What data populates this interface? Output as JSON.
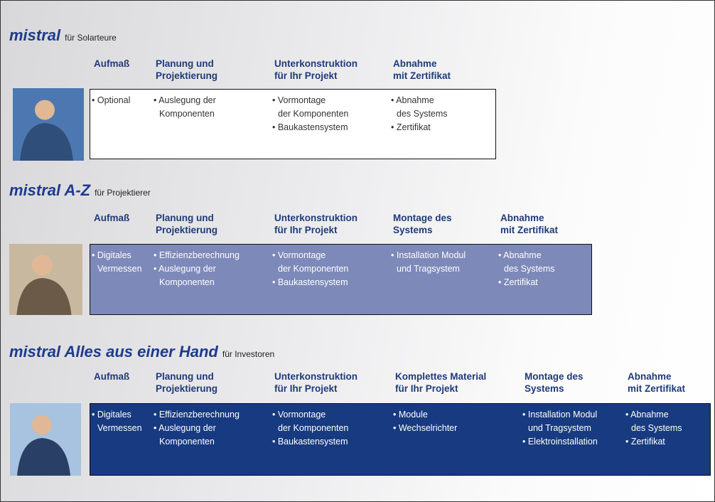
{
  "sections": [
    {
      "title": "mistral",
      "subtitle": "für Solarteure",
      "columns": [
        {
          "header": "Aufmaß",
          "items": [
            "• Optional"
          ]
        },
        {
          "header": "Planung und\nProjektierung",
          "items": [
            "• Auslegung der\nKomponenten"
          ]
        },
        {
          "header": "Unterkonstruktion\nfür Ihr Projekt",
          "items": [
            "• Vormontage\nder Komponenten",
            "• Baukastensystem"
          ]
        },
        {
          "header": "Abnahme\nmit Zertifikat",
          "items": [
            "• Abnahme\ndes Systems",
            "• Zertifikat"
          ]
        }
      ]
    },
    {
      "title": "mistral A-Z",
      "subtitle": "für Projektierer",
      "columns": [
        {
          "header": "Aufmaß",
          "items": [
            "• Digitales\nVermessen"
          ]
        },
        {
          "header": "Planung und\nProjektierung",
          "items": [
            "• Effizienzberechnung",
            "• Auslegung der\nKomponenten"
          ]
        },
        {
          "header": "Unterkonstruktion\nfür Ihr Projekt",
          "items": [
            "• Vormontage\nder Komponenten",
            "• Baukastensystem"
          ]
        },
        {
          "header": "Montage des\nSystems",
          "items": [
            "• Installation Modul\nund Tragsystem"
          ]
        },
        {
          "header": "Abnahme\nmit Zertifikat",
          "items": [
            "• Abnahme\ndes Systems",
            "• Zertifikat"
          ]
        }
      ]
    },
    {
      "title": "mistral Alles aus einer Hand",
      "subtitle": "für Investoren",
      "columns": [
        {
          "header": "Aufmaß",
          "items": [
            "• Digitales\nVermessen"
          ]
        },
        {
          "header": "Planung und\nProjektierung",
          "items": [
            "• Effizienzberechnung",
            "• Auslegung der\nKomponenten"
          ]
        },
        {
          "header": "Unterkonstruktion\nfür Ihr Projekt",
          "items": [
            "• Vormontage\nder Komponenten",
            "• Baukastensystem"
          ]
        },
        {
          "header": "Komplettes Material\nfür Ihr Projekt",
          "items": [
            "• Module",
            "• Wechselrichter"
          ]
        },
        {
          "header": "Montage des\nSystems",
          "items": [
            "• Installation Modul\nund Tragsystem",
            "• Elektroinstallation"
          ]
        },
        {
          "header": "Abnahme\nmit Zertifikat",
          "items": [
            "• Abnahme\ndes Systems",
            "• Zertifikat"
          ]
        }
      ]
    }
  ]
}
